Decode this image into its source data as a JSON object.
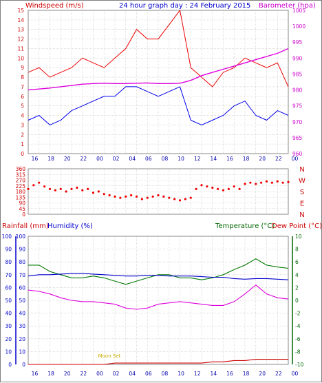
{
  "header": {
    "windspeed_label": "Windspeed (m/s)",
    "title": "24 hour graph day : 24 February 2015",
    "barometer_label": "Barometer (hpa)"
  },
  "bottom_header": {
    "rainfall_label": "Rainfall (mm)",
    "humidity_label": "Humidity (%)",
    "temperature_label": "Temperature (°C)",
    "dewpoint_label": "Dew Point (°C)"
  },
  "annotations": {
    "moon": "Moon Set"
  },
  "colors": {
    "wind_gust": "#ee0000",
    "wind_avg": "#0000ee",
    "barometer": "#dd00dd",
    "direction": "#ee0000",
    "temperature": "#007700",
    "dewpoint": "#0000cc",
    "humidity": "#dd00dd",
    "rain": "#cc0000",
    "grid": "#cccccc"
  },
  "x_ticks": [
    "16",
    "18",
    "20",
    "22",
    "00",
    "02",
    "04",
    "06",
    "08",
    "10",
    "12",
    "14",
    "16",
    "18",
    "20",
    "22",
    "00"
  ],
  "chart_data": [
    {
      "type": "line",
      "name": "wind-barometer",
      "x_hours": [
        0,
        1,
        2,
        3,
        4,
        5,
        6,
        7,
        8,
        9,
        10,
        11,
        12,
        13,
        14,
        15,
        16,
        17,
        18,
        19,
        20,
        21,
        22,
        23,
        24
      ],
      "series": [
        {
          "name": "Windspeed gust",
          "axis": "left",
          "values": [
            8.5,
            9,
            8,
            8.5,
            9,
            10,
            9.5,
            9,
            10,
            11,
            13,
            12,
            12,
            13.5,
            15,
            9,
            8,
            7,
            8.5,
            9,
            10,
            9.5,
            9,
            9.5,
            7
          ]
        },
        {
          "name": "Windspeed average",
          "axis": "left",
          "values": [
            3.5,
            4,
            3,
            3.5,
            4.5,
            5,
            5.5,
            6,
            6,
            7,
            7,
            6.5,
            6,
            6.5,
            7,
            3.5,
            3,
            3.5,
            4,
            5,
            5.5,
            4,
            3.5,
            4.5,
            4
          ]
        },
        {
          "name": "Barometer",
          "axis": "right",
          "values": [
            980,
            980.3,
            980.6,
            981,
            981.4,
            981.8,
            982,
            982.1,
            982,
            982,
            982.1,
            982.2,
            982,
            982,
            982.1,
            983,
            984.5,
            985.5,
            986.5,
            987.5,
            988.5,
            989.5,
            990.5,
            991.5,
            993
          ]
        }
      ],
      "ylim_left": [
        0,
        15
      ],
      "yticks_left": [
        0,
        1,
        2,
        3,
        4,
        5,
        6,
        7,
        8,
        9,
        10,
        11,
        12,
        13,
        14,
        15
      ],
      "ylim_right": [
        960,
        1005
      ],
      "yticks_right": [
        960,
        965,
        970,
        975,
        980,
        985,
        990,
        995,
        1000,
        1005
      ]
    },
    {
      "type": "scatter",
      "name": "wind-direction",
      "x_hours": [
        0,
        0.5,
        1,
        1.5,
        2,
        2.5,
        3,
        3.5,
        4,
        4.5,
        5,
        5.5,
        6,
        6.5,
        7,
        7.5,
        8,
        8.5,
        9,
        9.5,
        10,
        10.5,
        11,
        11.5,
        12,
        12.5,
        13,
        13.5,
        14,
        14.5,
        15,
        15.5,
        16,
        16.5,
        17,
        17.5,
        18,
        18.5,
        19,
        19.5,
        20,
        20.5,
        21,
        21.5,
        22,
        22.5,
        23,
        23.5,
        24
      ],
      "values": [
        200,
        230,
        250,
        220,
        200,
        190,
        200,
        180,
        200,
        210,
        190,
        200,
        170,
        180,
        160,
        150,
        140,
        130,
        140,
        150,
        140,
        120,
        130,
        140,
        150,
        140,
        130,
        120,
        110,
        120,
        130,
        200,
        230,
        220,
        210,
        200,
        190,
        200,
        220,
        200,
        240,
        250,
        240,
        250,
        260,
        250,
        260,
        250,
        255
      ],
      "ylim": [
        0,
        360
      ],
      "yticks": [
        0,
        45,
        90,
        135,
        180,
        225,
        270,
        315,
        360
      ],
      "compass_labels": [
        "N",
        "W",
        "S",
        "E",
        "N"
      ]
    },
    {
      "type": "line",
      "name": "temperature-humidity-rain",
      "x_hours": [
        0,
        1,
        2,
        3,
        4,
        5,
        6,
        7,
        8,
        9,
        10,
        11,
        12,
        13,
        14,
        15,
        16,
        17,
        18,
        19,
        20,
        21,
        22,
        23,
        24
      ],
      "series": [
        {
          "name": "Temperature",
          "axis": "right",
          "values": [
            5.5,
            5.5,
            4.5,
            4,
            3.5,
            3.5,
            3.8,
            3.5,
            3,
            2.5,
            3,
            3.5,
            4,
            4,
            3.5,
            3.5,
            3.2,
            3.5,
            4,
            4.8,
            5.5,
            6.5,
            5.5,
            5.2,
            5
          ]
        },
        {
          "name": "Dew Point",
          "axis": "right",
          "values": [
            3.8,
            4,
            4,
            4.1,
            4.2,
            4.2,
            4.1,
            4,
            3.9,
            3.8,
            3.8,
            3.9,
            3.9,
            3.8,
            3.8,
            3.8,
            3.7,
            3.6,
            3.6,
            3.4,
            3.3,
            3.4,
            3.4,
            3.3,
            3.2
          ]
        },
        {
          "name": "Humidity",
          "axis": "left",
          "values": [
            58,
            57,
            55,
            52,
            50,
            49,
            49,
            48,
            47,
            44,
            43,
            44,
            47,
            48,
            49,
            48,
            47,
            46,
            46,
            49,
            55,
            62,
            55,
            52,
            51
          ]
        },
        {
          "name": "Rainfall",
          "axis": "left",
          "values": [
            0,
            0,
            0,
            0,
            0,
            0,
            0,
            0,
            1,
            1,
            1,
            1,
            1,
            1,
            1,
            1,
            1,
            2,
            2,
            3,
            3,
            4,
            4,
            4,
            4
          ]
        }
      ],
      "ylim_left": [
        0,
        100
      ],
      "yticks_left": [
        0,
        10,
        20,
        30,
        40,
        50,
        60,
        70,
        80,
        90,
        100
      ],
      "ylim_right": [
        -10,
        10
      ],
      "yticks_right": [
        -10,
        -8,
        -6,
        -4,
        -2,
        0,
        2,
        4,
        6,
        8,
        10
      ]
    }
  ]
}
